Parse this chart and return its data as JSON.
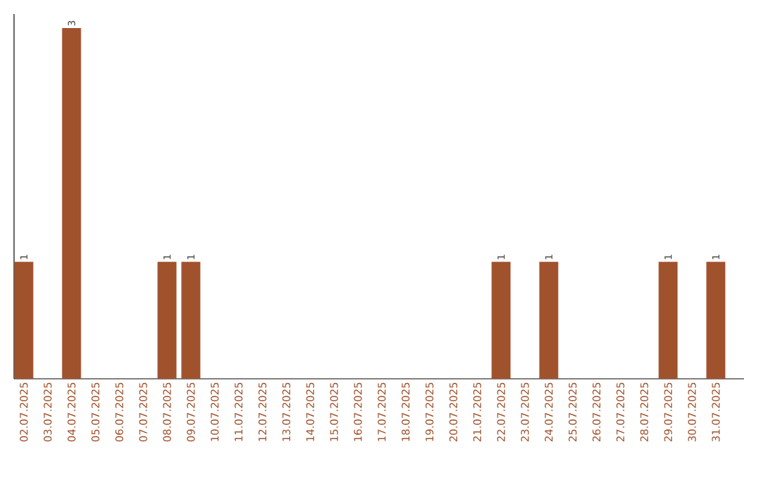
{
  "chart_data": {
    "type": "bar",
    "categories": [
      "02.07.2025",
      "03.07.2025",
      "04.07.2025",
      "05.07.2025",
      "06.07.2025",
      "07.07.2025",
      "08.07.2025",
      "09.07.2025",
      "10.07.2025",
      "11.07.2025",
      "12.07.2025",
      "13.07.2025",
      "14.07.2025",
      "15.07.2025",
      "16.07.2025",
      "17.07.2025",
      "18.07.2025",
      "19.07.2025",
      "20.07.2025",
      "21.07.2025",
      "22.07.2025",
      "23.07.2025",
      "24.07.2025",
      "25.07.2025",
      "26.07.2025",
      "27.07.2025",
      "28.07.2025",
      "29.07.2025",
      "30.07.2025",
      "31.07.2025"
    ],
    "values": [
      1,
      0,
      3,
      0,
      0,
      0,
      1,
      1,
      0,
      0,
      0,
      0,
      0,
      0,
      0,
      0,
      0,
      0,
      0,
      0,
      1,
      0,
      1,
      0,
      0,
      0,
      0,
      1,
      0,
      1
    ],
    "value_labels": [
      "1",
      null,
      "3",
      null,
      null,
      null,
      "1",
      "1",
      null,
      null,
      null,
      null,
      null,
      null,
      null,
      null,
      null,
      null,
      null,
      null,
      "1",
      null,
      "1",
      null,
      null,
      null,
      null,
      "1",
      null,
      "1"
    ],
    "color": "#a0522d"
  }
}
